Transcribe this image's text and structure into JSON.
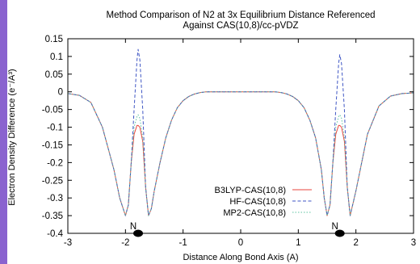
{
  "title_lines": [
    "Method Comparison of N2 at 3x Equilibrium Distance Referenced",
    "Against CAS(10,8)/cc-pVDZ"
  ],
  "colors": {
    "accent_bar": "#8a63cf",
    "background": "#ffffff",
    "atom": "#000000"
  },
  "chart_data": {
    "type": "line",
    "title": "Method Comparison of N2 at 3x Equilibrium Distance Referenced Against CAS(10,8)/cc-pVDZ",
    "xlabel": "Distance Along Bond Axis (A)",
    "ylabel": "Electron Density Difference (e⁻/A³)",
    "xlim": [
      -3,
      3
    ],
    "ylim": [
      -0.4,
      0.15
    ],
    "xticks": [
      -3,
      -2,
      -1,
      0,
      1,
      2,
      3
    ],
    "yticks": [
      0.15,
      0.1,
      0.05,
      0,
      -0.05,
      -0.1,
      -0.15,
      -0.2,
      -0.25,
      -0.3,
      -0.35,
      -0.4
    ],
    "xtick_labels": [
      "-3",
      "-2",
      "-1",
      "0",
      "1",
      "2",
      "3"
    ],
    "ytick_labels": [
      "0.15",
      "0.1",
      "0.05",
      "0",
      "-0.05",
      "-0.1",
      "-0.15",
      "-0.2",
      "-0.25",
      "-0.3",
      "-0.35",
      "-0.4"
    ],
    "grid": false,
    "legend_position": "lower-right",
    "atoms": [
      {
        "label": "N",
        "x": -1.78
      },
      {
        "label": "N",
        "x": 1.72
      }
    ],
    "series": [
      {
        "name": "B3LYP-CAS(10,8)",
        "color": "#e8453c",
        "dash": "solid",
        "x": [
          -3.0,
          -2.8,
          -2.6,
          -2.4,
          -2.2,
          -2.1,
          -2.0,
          -1.95,
          -1.9,
          -1.85,
          -1.8,
          -1.78,
          -1.75,
          -1.7,
          -1.65,
          -1.6,
          -1.55,
          -1.5,
          -1.4,
          -1.3,
          -1.2,
          -1.1,
          -1.0,
          -0.9,
          -0.8,
          -0.7,
          -0.6,
          -0.5,
          -0.4,
          -0.3,
          -0.2,
          -0.1,
          0.0,
          0.1,
          0.2,
          0.3,
          0.4,
          0.5,
          0.6,
          0.7,
          0.8,
          0.9,
          1.0,
          1.1,
          1.2,
          1.3,
          1.4,
          1.45,
          1.5,
          1.55,
          1.6,
          1.65,
          1.7,
          1.72,
          1.75,
          1.8,
          1.85,
          1.9,
          2.0,
          2.1,
          2.2,
          2.4,
          2.6,
          2.8,
          3.0
        ],
        "y": [
          -0.005,
          -0.01,
          -0.03,
          -0.1,
          -0.22,
          -0.3,
          -0.35,
          -0.32,
          -0.2,
          -0.12,
          -0.095,
          -0.095,
          -0.1,
          -0.14,
          -0.27,
          -0.35,
          -0.33,
          -0.28,
          -0.2,
          -0.13,
          -0.08,
          -0.045,
          -0.025,
          -0.013,
          -0.006,
          -0.002,
          0.0,
          0.0,
          0.0,
          0.0,
          0.0,
          0.0,
          0.0,
          0.0,
          0.0,
          0.0,
          0.0,
          0.0,
          0.0,
          -0.002,
          -0.006,
          -0.013,
          -0.025,
          -0.045,
          -0.08,
          -0.13,
          -0.22,
          -0.3,
          -0.35,
          -0.32,
          -0.2,
          -0.12,
          -0.095,
          -0.095,
          -0.1,
          -0.14,
          -0.27,
          -0.35,
          -0.28,
          -0.2,
          -0.12,
          -0.04,
          -0.012,
          -0.005,
          -0.003
        ]
      },
      {
        "name": "HF-CAS(10,8)",
        "color": "#3f56c4",
        "dash": "dashed",
        "x": [
          -3.0,
          -2.8,
          -2.6,
          -2.4,
          -2.2,
          -2.1,
          -2.0,
          -1.95,
          -1.9,
          -1.85,
          -1.8,
          -1.78,
          -1.75,
          -1.7,
          -1.65,
          -1.6,
          -1.55,
          -1.5,
          -1.4,
          -1.3,
          -1.2,
          -1.1,
          -1.0,
          -0.9,
          -0.8,
          -0.7,
          -0.6,
          -0.5,
          -0.4,
          -0.3,
          -0.2,
          -0.1,
          0.0,
          0.1,
          0.2,
          0.3,
          0.4,
          0.5,
          0.6,
          0.7,
          0.8,
          0.9,
          1.0,
          1.1,
          1.2,
          1.3,
          1.4,
          1.45,
          1.5,
          1.55,
          1.6,
          1.65,
          1.7,
          1.72,
          1.75,
          1.8,
          1.85,
          1.9,
          2.0,
          2.1,
          2.2,
          2.4,
          2.6,
          2.8,
          3.0
        ],
        "y": [
          -0.005,
          -0.01,
          -0.03,
          -0.1,
          -0.22,
          -0.3,
          -0.35,
          -0.32,
          -0.2,
          -0.05,
          0.09,
          0.12,
          0.09,
          -0.05,
          -0.27,
          -0.35,
          -0.33,
          -0.28,
          -0.2,
          -0.13,
          -0.08,
          -0.045,
          -0.025,
          -0.013,
          -0.006,
          -0.002,
          0.0,
          0.0,
          0.0,
          0.0,
          0.0,
          0.0,
          0.0,
          0.0,
          0.0,
          0.0,
          0.0,
          0.0,
          0.0,
          -0.002,
          -0.006,
          -0.013,
          -0.025,
          -0.045,
          -0.08,
          -0.13,
          -0.22,
          -0.3,
          -0.35,
          -0.32,
          -0.2,
          -0.05,
          0.08,
          0.105,
          0.08,
          -0.05,
          -0.27,
          -0.35,
          -0.28,
          -0.2,
          -0.12,
          -0.04,
          -0.012,
          -0.005,
          -0.003
        ]
      },
      {
        "name": "MP2-CAS(10,8)",
        "color": "#5cc3a0",
        "dash": "dotted",
        "x": [
          -3.0,
          -2.8,
          -2.6,
          -2.4,
          -2.2,
          -2.1,
          -2.0,
          -1.95,
          -1.9,
          -1.85,
          -1.8,
          -1.78,
          -1.75,
          -1.7,
          -1.65,
          -1.6,
          -1.55,
          -1.5,
          -1.4,
          -1.3,
          -1.2,
          -1.1,
          -1.0,
          -0.9,
          -0.8,
          -0.7,
          -0.6,
          -0.5,
          -0.4,
          -0.3,
          -0.2,
          -0.1,
          0.0,
          0.1,
          0.2,
          0.3,
          0.4,
          0.5,
          0.6,
          0.7,
          0.8,
          0.9,
          1.0,
          1.1,
          1.2,
          1.3,
          1.4,
          1.45,
          1.5,
          1.55,
          1.6,
          1.65,
          1.7,
          1.72,
          1.75,
          1.8,
          1.85,
          1.9,
          2.0,
          2.1,
          2.2,
          2.4,
          2.6,
          2.8,
          3.0
        ],
        "y": [
          -0.005,
          -0.01,
          -0.03,
          -0.1,
          -0.22,
          -0.3,
          -0.35,
          -0.32,
          -0.2,
          -0.1,
          -0.07,
          -0.065,
          -0.075,
          -0.13,
          -0.27,
          -0.35,
          -0.33,
          -0.28,
          -0.2,
          -0.13,
          -0.08,
          -0.045,
          -0.025,
          -0.013,
          -0.006,
          -0.002,
          0.0,
          0.0,
          0.0,
          0.0,
          0.0,
          0.0,
          0.0,
          0.0,
          0.0,
          0.0,
          0.0,
          0.0,
          0.0,
          -0.002,
          -0.006,
          -0.013,
          -0.025,
          -0.045,
          -0.08,
          -0.13,
          -0.22,
          -0.3,
          -0.35,
          -0.32,
          -0.2,
          -0.1,
          -0.07,
          -0.065,
          -0.075,
          -0.13,
          -0.27,
          -0.35,
          -0.28,
          -0.2,
          -0.12,
          -0.04,
          -0.012,
          -0.005,
          -0.003
        ]
      }
    ]
  }
}
